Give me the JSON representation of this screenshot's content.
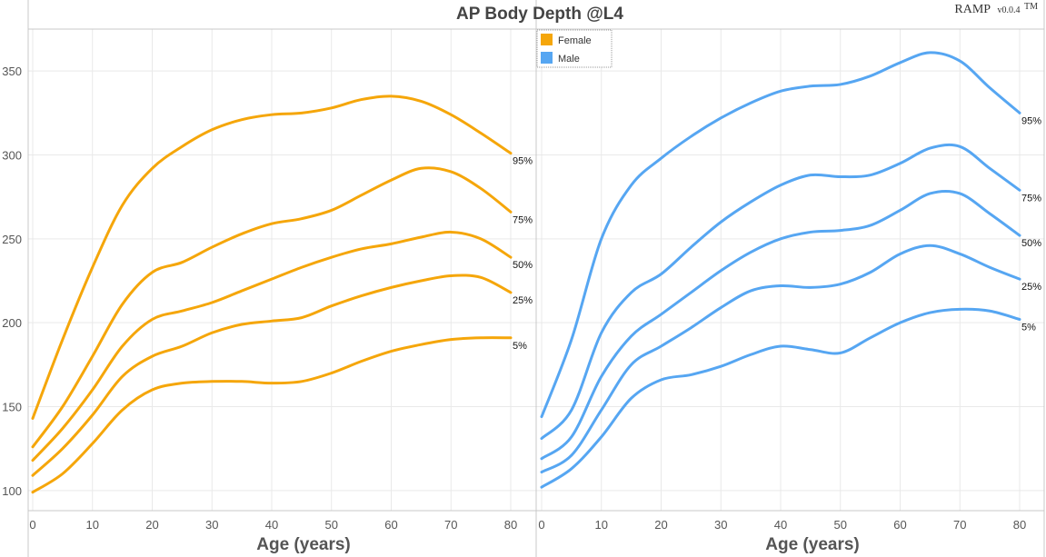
{
  "chart_data": {
    "type": "line",
    "title": "AP Body Depth @L4",
    "brand": {
      "name": "RAMP",
      "version": "v0.0.4",
      "mark": "TM"
    },
    "ylim": [
      88,
      375
    ],
    "yticks": [
      100,
      150,
      200,
      250,
      300,
      350
    ],
    "legend": {
      "placement": "top-center",
      "items": [
        {
          "name": "Female",
          "color": "#f5a60a"
        },
        {
          "name": "Male",
          "color": "#56a6f2"
        }
      ]
    },
    "panels": [
      {
        "name": "Female",
        "color": "#f5a60a",
        "xlabel": "Age (years)",
        "xlim": [
          0,
          82
        ],
        "xticks": [
          0,
          10,
          20,
          30,
          40,
          50,
          60,
          70,
          80
        ],
        "series": [
          {
            "label": "95%",
            "x": [
              0,
              5,
              10,
              15,
              20,
              25,
              30,
              35,
              40,
              45,
              50,
              55,
              60,
              65,
              70,
              75,
              80
            ],
            "y": [
              143,
              190,
              233,
              270,
              292,
              305,
              315,
              321,
              324,
              325,
              328,
              333,
              335,
              332,
              324,
              313,
              301
            ]
          },
          {
            "label": "75%",
            "x": [
              0,
              5,
              10,
              15,
              20,
              25,
              30,
              35,
              40,
              45,
              50,
              55,
              60,
              65,
              70,
              75,
              80
            ],
            "y": [
              126,
              150,
              180,
              211,
              230,
              236,
              245,
              253,
              259,
              262,
              267,
              276,
              285,
              292,
              290,
              280,
              266
            ]
          },
          {
            "label": "50%",
            "x": [
              0,
              5,
              10,
              15,
              20,
              25,
              30,
              35,
              40,
              45,
              50,
              55,
              60,
              65,
              70,
              75,
              80
            ],
            "y": [
              118,
              137,
              160,
              186,
              202,
              207,
              212,
              219,
              226,
              233,
              239,
              244,
              247,
              251,
              254,
              250,
              239
            ]
          },
          {
            "label": "25%",
            "x": [
              0,
              5,
              10,
              15,
              20,
              25,
              30,
              35,
              40,
              45,
              50,
              55,
              60,
              65,
              70,
              75,
              80
            ],
            "y": [
              109,
              125,
              145,
              168,
              180,
              186,
              194,
              199,
              201,
              203,
              210,
              216,
              221,
              225,
              228,
              227,
              218
            ]
          },
          {
            "label": "5%",
            "x": [
              0,
              5,
              10,
              15,
              20,
              25,
              30,
              35,
              40,
              45,
              50,
              55,
              60,
              65,
              70,
              75,
              80
            ],
            "y": [
              99,
              110,
              128,
              148,
              160,
              164,
              165,
              165,
              164,
              165,
              170,
              177,
              183,
              187,
              190,
              191,
              191
            ]
          }
        ]
      },
      {
        "name": "Male",
        "color": "#56a6f2",
        "xlabel": "Age (years)",
        "xlim": [
          0,
          82
        ],
        "xticks": [
          0,
          10,
          20,
          30,
          40,
          50,
          60,
          70,
          80
        ],
        "series": [
          {
            "label": "95%",
            "x": [
              0,
              5,
              10,
              15,
              20,
              25,
              30,
              35,
              40,
              45,
              50,
              55,
              60,
              65,
              70,
              75,
              80
            ],
            "y": [
              144,
              190,
              250,
              282,
              298,
              311,
              322,
              331,
              338,
              341,
              342,
              347,
              355,
              361,
              356,
              340,
              325
            ]
          },
          {
            "label": "75%",
            "x": [
              0,
              5,
              10,
              15,
              20,
              25,
              30,
              35,
              40,
              45,
              50,
              55,
              60,
              65,
              70,
              75,
              80
            ],
            "y": [
              131,
              148,
              194,
              218,
              229,
              245,
              260,
              272,
              282,
              288,
              287,
              288,
              295,
              304,
              305,
              292,
              279
            ]
          },
          {
            "label": "50%",
            "x": [
              0,
              5,
              10,
              15,
              20,
              25,
              30,
              35,
              40,
              45,
              50,
              55,
              60,
              65,
              70,
              75,
              80
            ],
            "y": [
              119,
              132,
              168,
              192,
              205,
              218,
              231,
              242,
              250,
              254,
              255,
              258,
              267,
              277,
              277,
              265,
              252
            ]
          },
          {
            "label": "25%",
            "x": [
              0,
              5,
              10,
              15,
              20,
              25,
              30,
              35,
              40,
              45,
              50,
              55,
              60,
              65,
              70,
              75,
              80
            ],
            "y": [
              111,
              121,
              148,
              175,
              186,
              197,
              209,
              219,
              222,
              221,
              223,
              230,
              241,
              246,
              241,
              233,
              226
            ]
          },
          {
            "label": "5%",
            "x": [
              0,
              5,
              10,
              15,
              20,
              25,
              30,
              35,
              40,
              45,
              50,
              55,
              60,
              65,
              70,
              75,
              80
            ],
            "y": [
              102,
              113,
              132,
              155,
              166,
              169,
              174,
              181,
              186,
              184,
              182,
              191,
              200,
              206,
              208,
              207,
              202
            ]
          }
        ]
      }
    ]
  }
}
